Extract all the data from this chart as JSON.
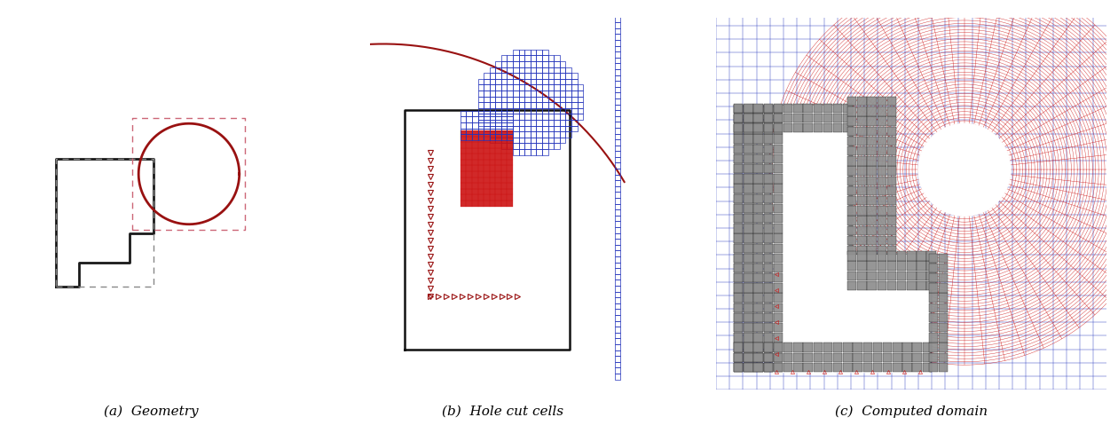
{
  "fig_width": 12.6,
  "fig_height": 4.88,
  "dpi": 100,
  "bg_color": "#ffffff",
  "panel_a_label": "(a)  Geometry",
  "panel_b_label": "(b)  Hole cut cells",
  "panel_c_label": "(c)  Computed domain",
  "concave_color": "#1a1a1a",
  "circle_red": "#991111",
  "dashed_gray": "#888888",
  "dashed_pink": "#cc6677",
  "blue_color": "#2233bb",
  "red_color": "#cc1111",
  "dark_body": "#222222",
  "body_face": "#888888"
}
